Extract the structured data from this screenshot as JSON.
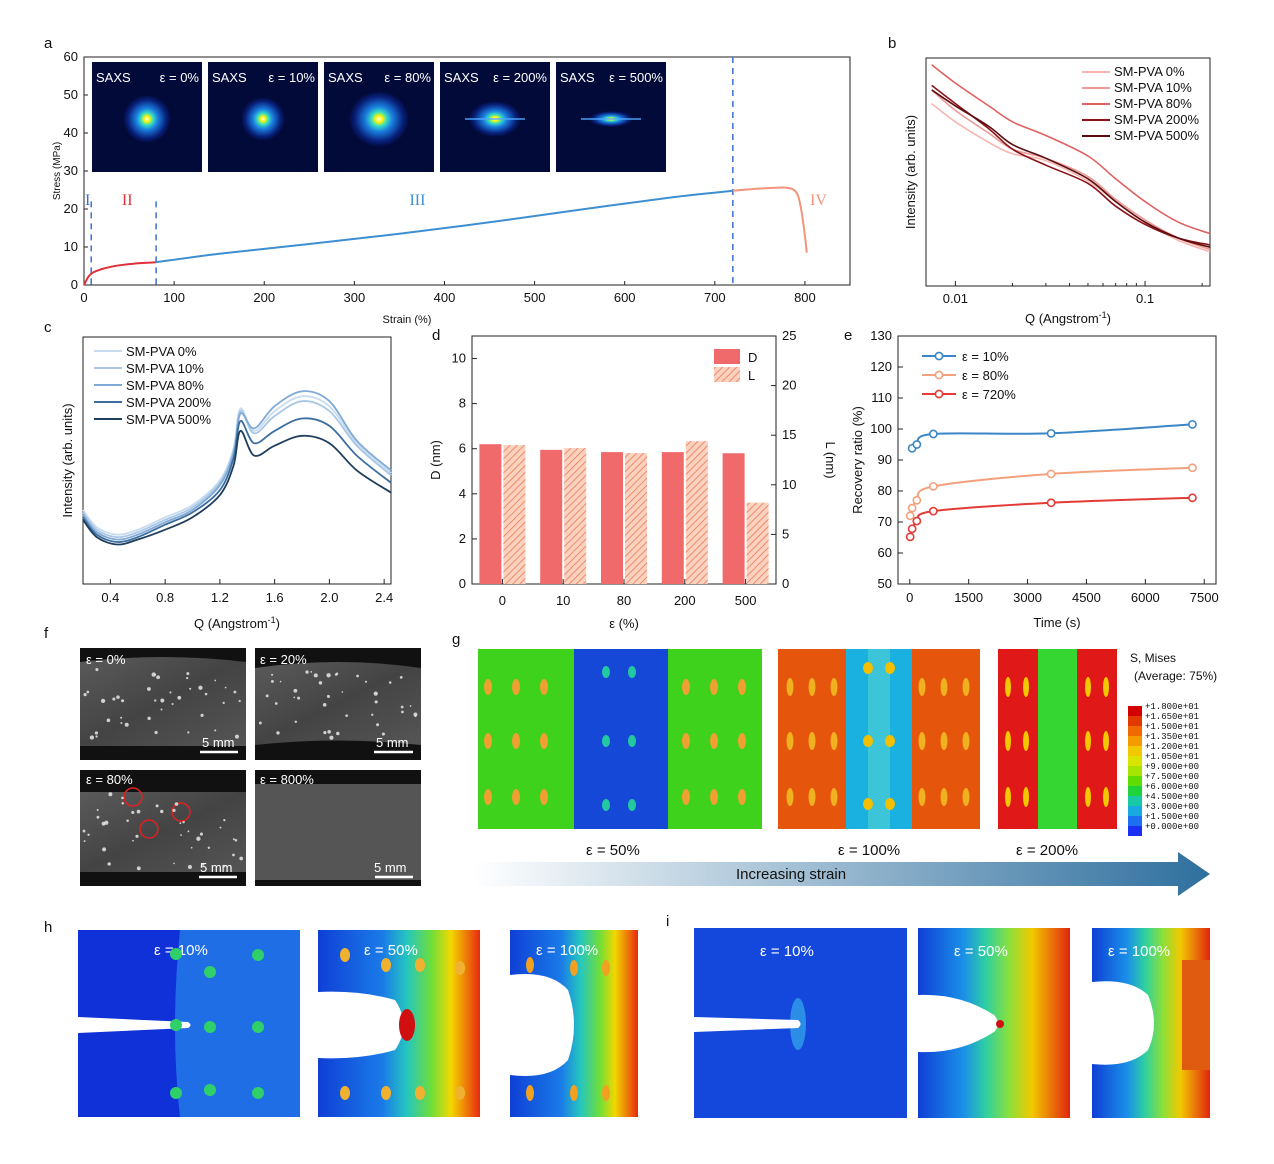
{
  "panel_labels": [
    "a",
    "b",
    "c",
    "d",
    "e",
    "f",
    "g",
    "h",
    "i"
  ],
  "chart_data": [
    {
      "id": "a",
      "type": "line",
      "xlabel": "Strain (%)",
      "ylabel": "Stress (MPa)",
      "xlim": [
        0,
        850
      ],
      "ylim": [
        0,
        60
      ],
      "xticks": [
        0,
        100,
        200,
        300,
        400,
        500,
        600,
        700,
        800
      ],
      "yticks": [
        0,
        10,
        20,
        30,
        40,
        50,
        60
      ],
      "regions": [
        "I",
        "II",
        "III",
        "IV"
      ],
      "region_boundaries": [
        8,
        80,
        720
      ],
      "series": [
        {
          "name": "II",
          "color": "#e0303a",
          "x": [
            0,
            5,
            10,
            20,
            30,
            40,
            50,
            60,
            70,
            80
          ],
          "y": [
            0,
            2.2,
            3.3,
            4.2,
            4.8,
            5.2,
            5.5,
            5.7,
            5.85,
            6.0
          ]
        },
        {
          "name": "III",
          "color": "#3d8fd1",
          "x": [
            80,
            150,
            250,
            350,
            450,
            550,
            650,
            720
          ],
          "y": [
            6.0,
            8.2,
            10.8,
            13.5,
            16.5,
            19.8,
            23.0,
            24.8
          ]
        },
        {
          "name": "IV",
          "color": "#f0957a",
          "x": [
            720,
            740,
            760,
            780,
            790,
            795,
            800,
            802
          ],
          "y": [
            24.8,
            25.2,
            25.5,
            25.6,
            24.5,
            21.0,
            13.0,
            8.5
          ]
        }
      ],
      "saxs_insets": [
        {
          "label": "SAXS",
          "strain": "ε = 0%"
        },
        {
          "label": "SAXS",
          "strain": "ε = 10%"
        },
        {
          "label": "SAXS",
          "strain": "ε = 80%"
        },
        {
          "label": "SAXS",
          "strain": "ε = 200%"
        },
        {
          "label": "SAXS",
          "strain": "ε = 500%"
        }
      ]
    },
    {
      "id": "b",
      "type": "line",
      "xscale": "log",
      "xlabel": "Q (Angstrom",
      "xlabel_sup": "-1",
      "xlabel_end": ")",
      "ylabel": "Intensity (arb. units)",
      "xlim": [
        0.007,
        0.22
      ],
      "xticks": [
        0.01,
        0.1
      ],
      "xticklabels": [
        "0.01",
        "0.1"
      ],
      "legend_position": "top-right",
      "series": [
        {
          "name": "SM-PVA 0%",
          "color": "#f6b6b0",
          "q": [
            0.0075,
            0.01,
            0.015,
            0.02,
            0.03,
            0.05,
            0.07,
            0.1,
            0.15,
            0.22
          ],
          "y": [
            0.8,
            0.72,
            0.63,
            0.58,
            0.55,
            0.46,
            0.37,
            0.28,
            0.2,
            0.15
          ]
        },
        {
          "name": "SM-PVA 10%",
          "color": "#ee9a95",
          "q": [
            0.0075,
            0.01,
            0.015,
            0.02,
            0.03,
            0.05,
            0.07,
            0.1,
            0.15,
            0.22
          ],
          "y": [
            0.86,
            0.77,
            0.67,
            0.6,
            0.56,
            0.48,
            0.38,
            0.29,
            0.21,
            0.16
          ]
        },
        {
          "name": "SM-PVA 80%",
          "color": "#e0605f",
          "q": [
            0.0075,
            0.01,
            0.015,
            0.02,
            0.03,
            0.05,
            0.07,
            0.1,
            0.15,
            0.22
          ],
          "y": [
            0.97,
            0.89,
            0.79,
            0.72,
            0.66,
            0.57,
            0.47,
            0.37,
            0.28,
            0.23
          ]
        },
        {
          "name": "SM-PVA 200%",
          "color": "#8b1219",
          "q": [
            0.0075,
            0.01,
            0.015,
            0.02,
            0.03,
            0.05,
            0.07,
            0.1,
            0.15,
            0.22
          ],
          "y": [
            0.88,
            0.8,
            0.69,
            0.6,
            0.53,
            0.45,
            0.35,
            0.27,
            0.21,
            0.18
          ]
        },
        {
          "name": "SM-PVA 500%",
          "color": "#5a0d10",
          "q": [
            0.0075,
            0.01,
            0.015,
            0.02,
            0.03,
            0.05,
            0.07,
            0.1,
            0.15,
            0.22
          ],
          "y": [
            0.86,
            0.79,
            0.7,
            0.62,
            0.56,
            0.47,
            0.37,
            0.28,
            0.21,
            0.17
          ]
        }
      ]
    },
    {
      "id": "c",
      "type": "line",
      "xlabel": "Q (Angstrom",
      "xlabel_sup": "-1",
      "xlabel_end": ")",
      "ylabel": "Intensity (arb. units)",
      "xlim": [
        0.2,
        2.45
      ],
      "xticks": [
        0.4,
        0.8,
        1.2,
        1.6,
        2.0,
        2.4
      ],
      "legend_position": "top-left",
      "series": [
        {
          "name": "SM-PVA 0%",
          "color": "#c9dcef",
          "q": [
            0.2,
            0.3,
            0.45,
            0.6,
            0.8,
            1.0,
            1.2,
            1.3,
            1.35,
            1.45,
            1.6,
            1.8,
            2.0,
            2.2,
            2.45
          ],
          "y": [
            0.3,
            0.23,
            0.2,
            0.22,
            0.27,
            0.32,
            0.42,
            0.55,
            0.71,
            0.62,
            0.7,
            0.76,
            0.72,
            0.57,
            0.45
          ]
        },
        {
          "name": "SM-PVA 10%",
          "color": "#a9c7e6",
          "q": [
            0.2,
            0.3,
            0.45,
            0.6,
            0.8,
            1.0,
            1.2,
            1.3,
            1.35,
            1.45,
            1.6,
            1.8,
            2.0,
            2.2,
            2.45
          ],
          "y": [
            0.29,
            0.22,
            0.19,
            0.21,
            0.26,
            0.31,
            0.41,
            0.54,
            0.7,
            0.61,
            0.68,
            0.74,
            0.7,
            0.56,
            0.44
          ]
        },
        {
          "name": "SM-PVA 80%",
          "color": "#7fa9d6",
          "q": [
            0.2,
            0.3,
            0.45,
            0.6,
            0.8,
            1.0,
            1.2,
            1.3,
            1.35,
            1.45,
            1.6,
            1.8,
            2.0,
            2.2,
            2.45
          ],
          "y": [
            0.28,
            0.21,
            0.18,
            0.2,
            0.25,
            0.3,
            0.4,
            0.53,
            0.69,
            0.63,
            0.72,
            0.78,
            0.74,
            0.58,
            0.46
          ]
        },
        {
          "name": "SM-PVA 200%",
          "color": "#3d6f9e",
          "q": [
            0.2,
            0.3,
            0.45,
            0.6,
            0.8,
            1.0,
            1.2,
            1.3,
            1.35,
            1.45,
            1.6,
            1.8,
            2.0,
            2.2,
            2.45
          ],
          "y": [
            0.27,
            0.2,
            0.17,
            0.19,
            0.24,
            0.29,
            0.38,
            0.51,
            0.66,
            0.57,
            0.62,
            0.67,
            0.64,
            0.52,
            0.41
          ]
        },
        {
          "name": "SM-PVA 500%",
          "color": "#1f3e5e",
          "q": [
            0.2,
            0.3,
            0.45,
            0.6,
            0.8,
            1.0,
            1.2,
            1.3,
            1.35,
            1.45,
            1.6,
            1.8,
            2.0,
            2.2,
            2.45
          ],
          "y": [
            0.26,
            0.19,
            0.16,
            0.18,
            0.22,
            0.27,
            0.36,
            0.48,
            0.62,
            0.52,
            0.56,
            0.6,
            0.57,
            0.46,
            0.37
          ]
        }
      ]
    },
    {
      "id": "d",
      "type": "bar",
      "xlabel": "ε (%)",
      "ylabel": "D (nm)",
      "ylabel_right": "L (nm)",
      "categories": [
        "0",
        "10",
        "80",
        "200",
        "500"
      ],
      "ylim": [
        0,
        11
      ],
      "yticks": [
        0,
        2,
        4,
        6,
        8,
        10
      ],
      "ylim_right": [
        0,
        25
      ],
      "yticks_right": [
        0,
        5,
        10,
        15,
        20,
        25
      ],
      "series": [
        {
          "name": "D",
          "color": "#f06a6c",
          "axis": "left",
          "values": [
            6.2,
            5.95,
            5.85,
            5.85,
            5.8
          ]
        },
        {
          "name": "L",
          "color": "#f7a888",
          "axis": "right",
          "hatch": true,
          "values": [
            14.0,
            13.7,
            13.2,
            14.4,
            8.2
          ]
        }
      ]
    },
    {
      "id": "e",
      "type": "line",
      "xlabel": "Time (s)",
      "ylabel": "Recovery ratio (%)",
      "xlim": [
        -300,
        7800
      ],
      "ylim": [
        50,
        130
      ],
      "xticks": [
        0,
        1500,
        3000,
        4500,
        6000,
        7500
      ],
      "yticks": [
        50,
        60,
        70,
        80,
        90,
        100,
        110,
        120,
        130
      ],
      "series": [
        {
          "name": "ε = 10%",
          "color": "#3b86c6",
          "x": [
            60,
            180,
            600,
            3600,
            7200
          ],
          "y": [
            93.8,
            95.0,
            98.4,
            98.6,
            101.5
          ]
        },
        {
          "name": "ε = 80%",
          "color": "#f3a07c",
          "x": [
            10,
            60,
            180,
            600,
            3600,
            7200
          ],
          "y": [
            72.0,
            74.5,
            77.0,
            81.5,
            85.5,
            87.5
          ]
        },
        {
          "name": "ε = 720%",
          "color": "#e43b37",
          "x": [
            10,
            60,
            180,
            600,
            3600,
            7200
          ],
          "y": [
            65.2,
            67.8,
            70.3,
            73.5,
            76.2,
            77.8
          ]
        }
      ]
    }
  ],
  "panel_f": {
    "images": [
      {
        "strain": "ε = 0%",
        "scale": "5 mm"
      },
      {
        "strain": "ε = 20%",
        "scale": "5 mm"
      },
      {
        "strain": "ε = 80%",
        "scale": "5 mm"
      },
      {
        "strain": "ε = 800%",
        "scale": "5 mm"
      }
    ]
  },
  "panel_g": {
    "captions": [
      "ε = 50%",
      "ε = 100%",
      "ε = 200%"
    ],
    "arrow_label": "Increasing strain",
    "colorbar_title": "S, Mises",
    "colorbar_subtitle": "(Average: 75%)",
    "colorbar_labels": [
      "+1.800e+01",
      "+1.650e+01",
      "+1.500e+01",
      "+1.350e+01",
      "+1.200e+01",
      "+1.050e+01",
      "+9.000e+00",
      "+7.500e+00",
      "+6.000e+00",
      "+4.500e+00",
      "+3.000e+00",
      "+1.500e+00",
      "+0.000e+00"
    ],
    "colorbar_colors": [
      "#d40000",
      "#e03a00",
      "#f06a00",
      "#f59a00",
      "#f2c900",
      "#dbe300",
      "#a6e500",
      "#5fdc00",
      "#1fd43a",
      "#18c9a8",
      "#19a9e2",
      "#1c6ff0",
      "#1b2ff3"
    ]
  },
  "panel_h": {
    "labels": [
      "ε = 10%",
      "ε = 50%",
      "ε = 100%"
    ]
  },
  "panel_i": {
    "labels": [
      "ε = 10%",
      "ε = 50%",
      "ε = 100%"
    ]
  }
}
